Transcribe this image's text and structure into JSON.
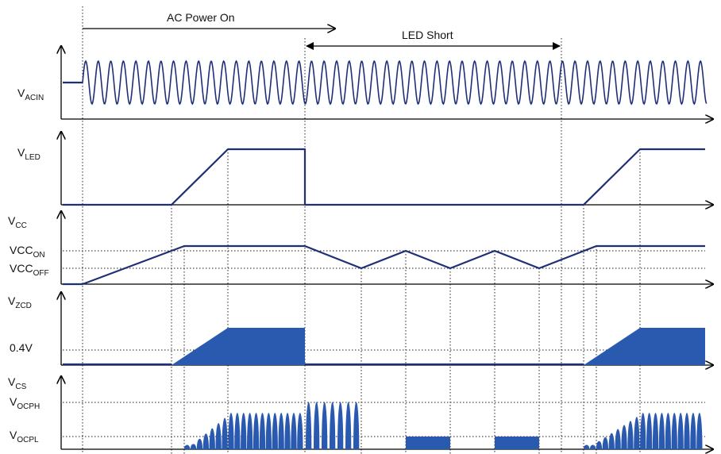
{
  "annotations": {
    "ac_power_on": "AC Power On",
    "led_short": "LED Short"
  },
  "labels": {
    "vacin": {
      "base": "V",
      "sub": "ACIN"
    },
    "vled": {
      "base": "V",
      "sub": "LED"
    },
    "vcc": {
      "base": "V",
      "sub": "CC"
    },
    "vcc_on": {
      "base": "VCC",
      "sub": "ON"
    },
    "vcc_off": {
      "base": "VCC",
      "sub": "OFF"
    },
    "vzcd": {
      "base": "V",
      "sub": "ZCD"
    },
    "zcd_level": "0.4V",
    "vcs": {
      "base": "V",
      "sub": "CS"
    },
    "vocph": {
      "base": "V",
      "sub": "OCPH"
    },
    "vocpl": {
      "base": "V",
      "sub": "OCPL"
    }
  },
  "colors": {
    "trace": "#1f2f75",
    "fill": "#2a5ab0",
    "axis": "#000000"
  }
}
